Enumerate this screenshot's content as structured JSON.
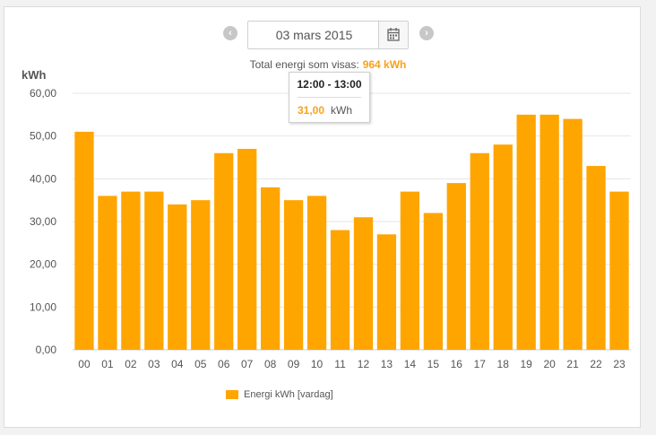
{
  "nav": {
    "date": "03 mars 2015",
    "prev_icon": "chevron-left-icon",
    "next_icon": "chevron-right-icon",
    "calendar_icon": "calendar-icon"
  },
  "summary": {
    "label": "Total energi som visas:",
    "value": "964 kWh"
  },
  "tooltip": {
    "title": "12:00 - 13:00",
    "value": "31,00",
    "unit": "kWh"
  },
  "colors": {
    "bar": "#ffa500",
    "accent": "#f7a21b",
    "grid": "#e6e6e6"
  },
  "chart_data": {
    "type": "bar",
    "ylabel": "kWh",
    "ylim": [
      0,
      60
    ],
    "yticks": [
      "0,00",
      "10,00",
      "20,00",
      "30,00",
      "40,00",
      "50,00",
      "60,00"
    ],
    "categories": [
      "00",
      "01",
      "02",
      "03",
      "04",
      "05",
      "06",
      "07",
      "08",
      "09",
      "10",
      "11",
      "12",
      "13",
      "14",
      "15",
      "16",
      "17",
      "18",
      "19",
      "20",
      "21",
      "22",
      "23"
    ],
    "series": [
      {
        "name": "Energi kWh [vardag]",
        "values": [
          51,
          36,
          37,
          37,
          34,
          35,
          46,
          47,
          38,
          35,
          36,
          28,
          31,
          27,
          37,
          32,
          39,
          46,
          48,
          55,
          55,
          54,
          43,
          37
        ]
      }
    ],
    "legend": "bottom-left",
    "grid": true
  }
}
